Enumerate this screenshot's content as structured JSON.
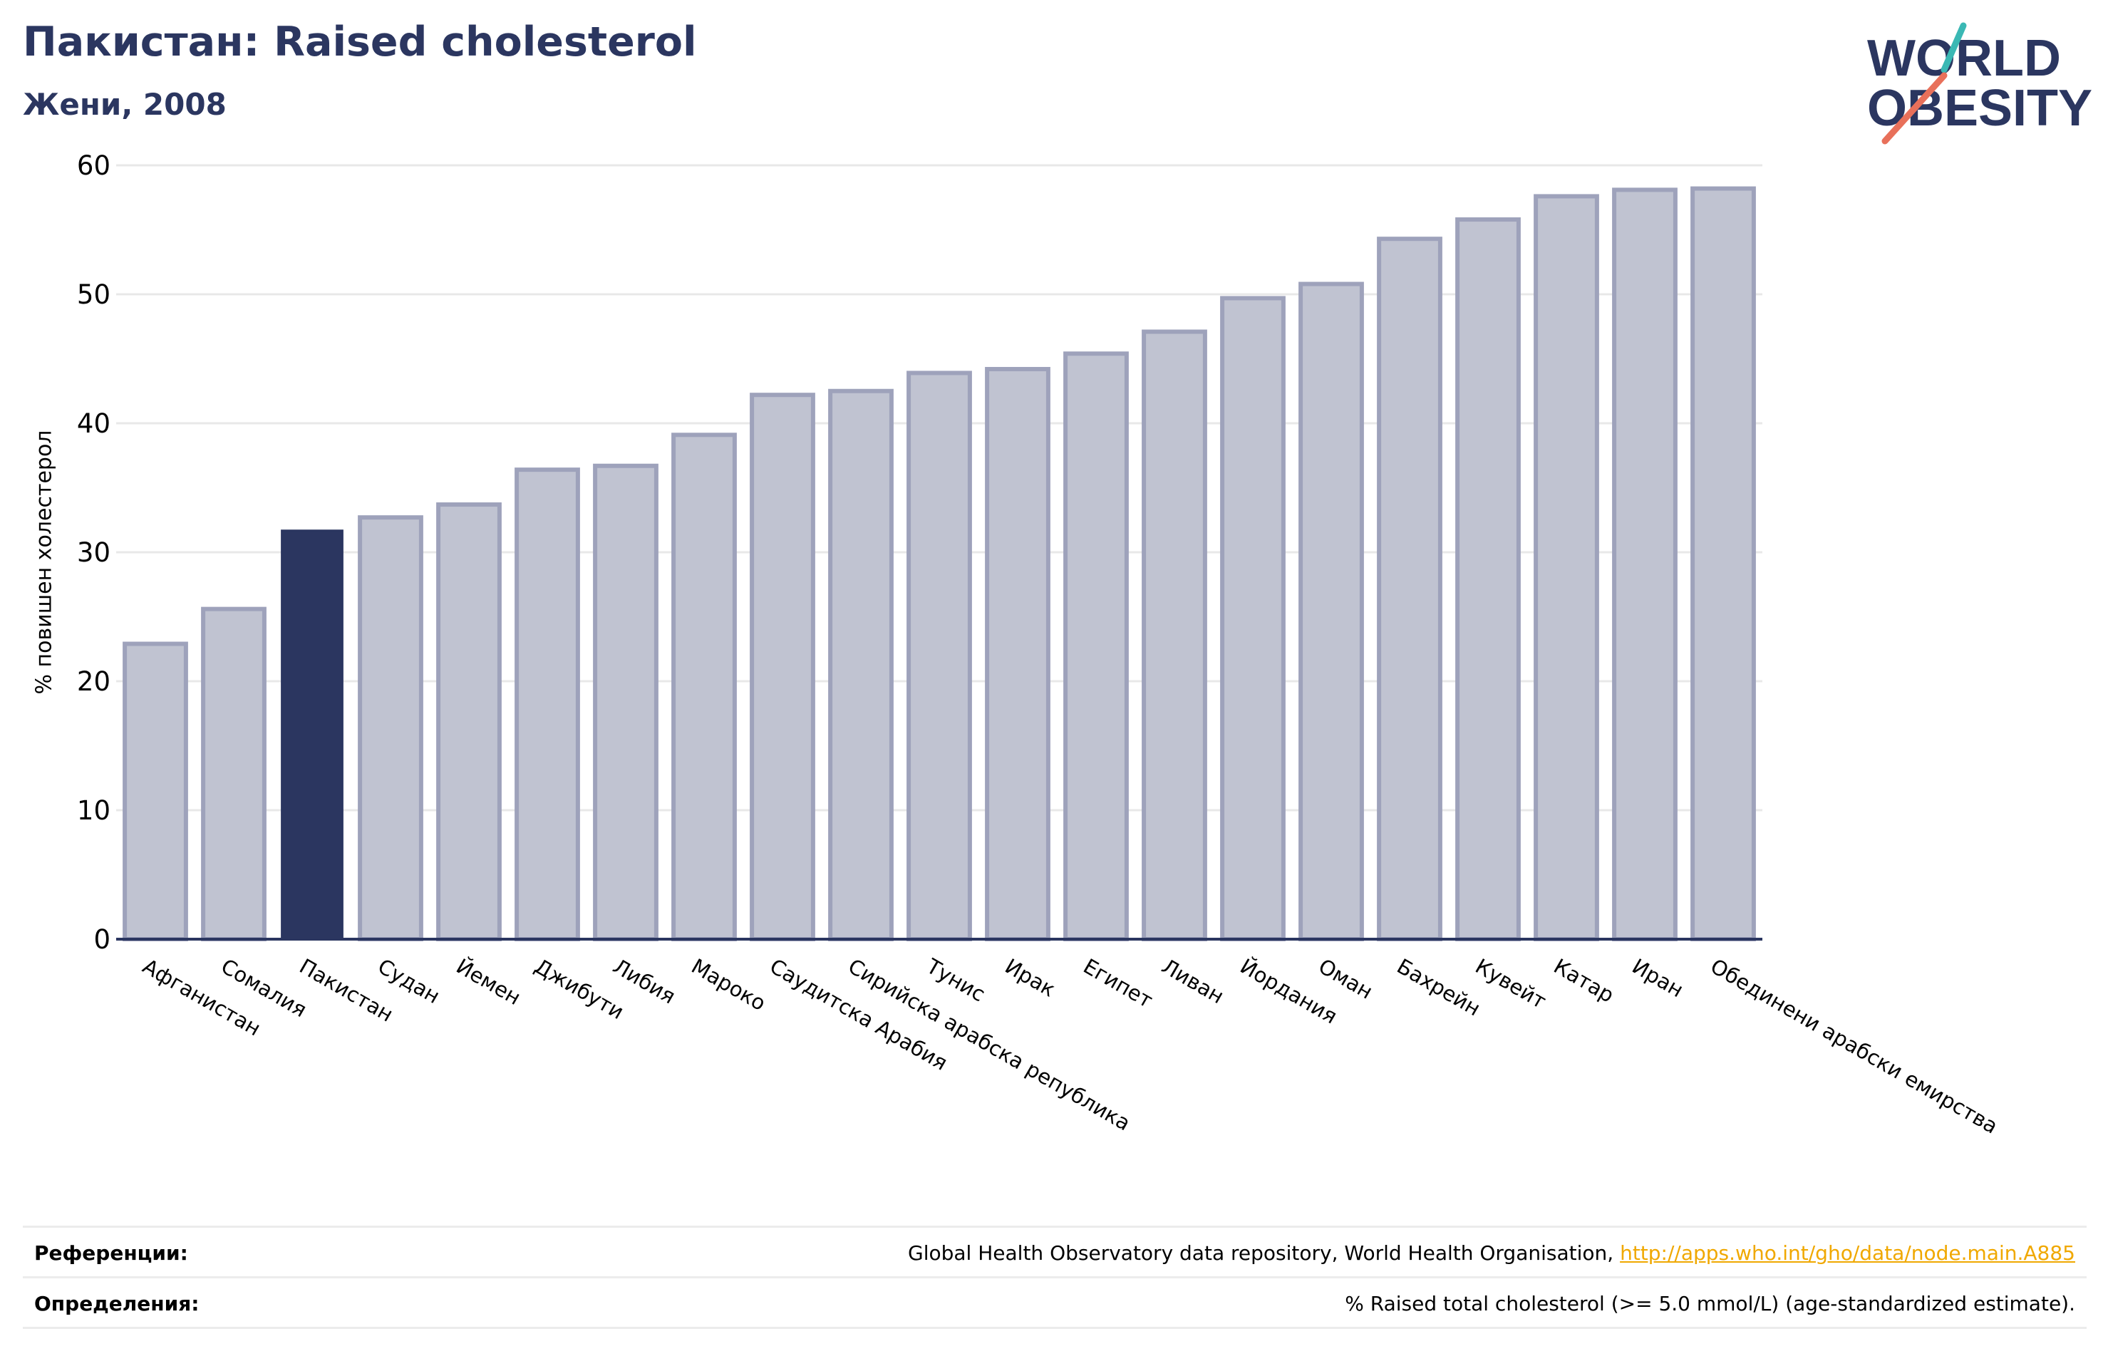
{
  "header": {
    "title": "Пакистан: Raised cholesterol",
    "subtitle": "Жени, 2008"
  },
  "logo": {
    "line1": "WORLD",
    "line2": "OBESITY",
    "slash_colors": [
      "#3ab8b4",
      "#e8705a"
    ]
  },
  "colors": {
    "highlight": "#2b3660",
    "bar": "#c0c3d1",
    "bar_edge": "#9ea2bb",
    "grid": "#e8e8e8",
    "axis": "#2b3660",
    "title": "#2b3660",
    "link": "#f0a800"
  },
  "chart_data": {
    "type": "bar",
    "ylabel": "% повишен холестерол",
    "ylim": [
      0,
      60
    ],
    "yticks": [
      0,
      10,
      20,
      30,
      40,
      50,
      60
    ],
    "grid": true,
    "highlight": "Пакистан",
    "categories": [
      "Афганистан",
      "Сомалия",
      "Пакистан",
      "Судан",
      "Йемен",
      "Джибути",
      "Либия",
      "Мароко",
      "Саудитска Арабия",
      "Сирийска арабска република",
      "Тунис",
      "Ирак",
      "Египет",
      "Ливан",
      "Йордания",
      "Оман",
      "Бахрейн",
      "Кувейт",
      "Катар",
      "Иран",
      "Обединени арабски емирства"
    ],
    "values": [
      22.9,
      25.6,
      31.7,
      32.7,
      33.7,
      36.4,
      36.7,
      39.1,
      42.2,
      42.5,
      43.9,
      44.2,
      45.4,
      47.1,
      49.7,
      50.8,
      54.3,
      55.8,
      57.6,
      58.1,
      58.2
    ]
  },
  "footer": {
    "references_label": "Референции:",
    "references_text": "Global Health Observatory data repository, World Health Organisation, ",
    "references_link": "http://apps.who.int/gho/data/node.main.A885",
    "definitions_label": "Определения:",
    "definitions_text": "% Raised total cholesterol (>= 5.0 mmol/L) (age-standardized estimate)."
  }
}
